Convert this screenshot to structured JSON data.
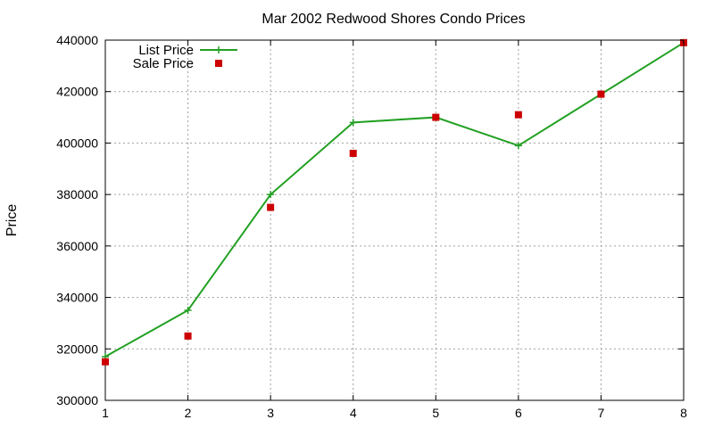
{
  "chart_data": {
    "type": "line",
    "title": "Mar 2002 Redwood Shores Condo Prices",
    "xlabel": "",
    "ylabel": "Price",
    "x": [
      1,
      2,
      3,
      4,
      5,
      6,
      7,
      8
    ],
    "xlim": [
      1,
      8
    ],
    "ylim": [
      300000,
      440000
    ],
    "xticks": [
      "1",
      "2",
      "3",
      "4",
      "5",
      "6",
      "7",
      "8"
    ],
    "yticks": [
      "300000",
      "320000",
      "340000",
      "360000",
      "380000",
      "400000",
      "420000",
      "440000"
    ],
    "grid": true,
    "legend_position": "top-left",
    "series": [
      {
        "name": "List Price",
        "style": "lines+points",
        "marker": "plus",
        "color": "#22a022",
        "values": [
          317000,
          335000,
          380000,
          408000,
          410000,
          399000,
          419000,
          439000
        ]
      },
      {
        "name": "Sale Price",
        "style": "points",
        "marker": "square",
        "color": "#cc0000",
        "values": [
          315000,
          325000,
          375000,
          396000,
          410000,
          411000,
          419000,
          439000
        ]
      }
    ]
  }
}
